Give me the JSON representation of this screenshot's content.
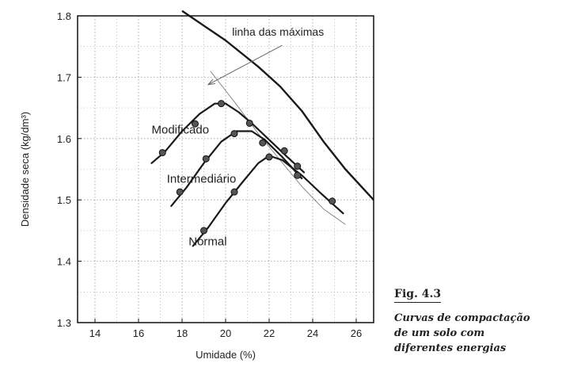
{
  "chart_data": {
    "type": "line",
    "xlabel": "Umidade (%)",
    "ylabel": "Densidade seca (kg/dm³)",
    "xlim": [
      13.2,
      26.8
    ],
    "ylim": [
      1.3,
      1.8
    ],
    "x_ticks": [
      "14",
      "16",
      "18",
      "20",
      "22",
      "24",
      "26"
    ],
    "y_ticks": [
      "1.3",
      "1.4",
      "1.5",
      "1.6",
      "1.7",
      "1.8"
    ],
    "grid": true,
    "series": [
      {
        "name": "Modificado",
        "curve": [
          [
            16.6,
            1.56
          ],
          [
            17.2,
            1.578
          ],
          [
            18.0,
            1.612
          ],
          [
            18.8,
            1.64
          ],
          [
            19.5,
            1.657
          ],
          [
            20.0,
            1.657
          ],
          [
            20.6,
            1.643
          ],
          [
            21.2,
            1.625
          ],
          [
            22.0,
            1.598
          ],
          [
            22.8,
            1.571
          ],
          [
            23.6,
            1.545
          ]
        ],
        "points": [
          [
            17.1,
            1.577
          ],
          [
            18.6,
            1.624
          ],
          [
            19.8,
            1.657
          ],
          [
            21.1,
            1.625
          ],
          [
            22.7,
            1.58
          ],
          [
            23.3,
            1.555
          ]
        ]
      },
      {
        "name": "Intermediário",
        "curve": [
          [
            17.5,
            1.49
          ],
          [
            18.2,
            1.52
          ],
          [
            19.0,
            1.56
          ],
          [
            19.8,
            1.595
          ],
          [
            20.5,
            1.612
          ],
          [
            21.2,
            1.612
          ],
          [
            21.8,
            1.598
          ],
          [
            22.6,
            1.57
          ],
          [
            23.5,
            1.535
          ]
        ],
        "points": [
          [
            17.9,
            1.513
          ],
          [
            19.1,
            1.567
          ],
          [
            20.4,
            1.608
          ],
          [
            21.7,
            1.593
          ],
          [
            23.3,
            1.54
          ]
        ]
      },
      {
        "name": "Normal",
        "curve": [
          [
            18.5,
            1.425
          ],
          [
            19.2,
            1.455
          ],
          [
            20.0,
            1.495
          ],
          [
            20.8,
            1.53
          ],
          [
            21.5,
            1.56
          ],
          [
            22.0,
            1.572
          ],
          [
            22.6,
            1.565
          ],
          [
            23.5,
            1.54
          ],
          [
            24.4,
            1.51
          ],
          [
            25.4,
            1.478
          ]
        ],
        "points": [
          [
            19.0,
            1.45
          ],
          [
            20.4,
            1.513
          ],
          [
            22.0,
            1.57
          ],
          [
            24.9,
            1.498
          ]
        ]
      }
    ],
    "max_line": {
      "name": "linha das máximas",
      "curve": [
        [
          18.0,
          1.808
        ],
        [
          20.0,
          1.76
        ],
        [
          21.5,
          1.717
        ],
        [
          22.5,
          1.685
        ],
        [
          23.5,
          1.645
        ],
        [
          24.5,
          1.595
        ],
        [
          25.5,
          1.55
        ],
        [
          26.8,
          1.5
        ]
      ]
    },
    "optimum_line": {
      "curve": [
        [
          19.3,
          1.71
        ],
        [
          20.4,
          1.66
        ],
        [
          21.5,
          1.608
        ],
        [
          22.5,
          1.565
        ],
        [
          23.5,
          1.522
        ],
        [
          24.5,
          1.485
        ],
        [
          25.5,
          1.46
        ]
      ]
    },
    "annotation": {
      "text": "linha das máximas",
      "text_at": [
        20.3,
        1.768
      ],
      "arrow_from": [
        22.6,
        1.752
      ],
      "arrow_to": [
        19.2,
        1.688
      ]
    },
    "curve_labels": [
      {
        "text": "Modificado",
        "at": [
          16.6,
          1.608
        ]
      },
      {
        "text": "Intermediário",
        "at": [
          17.3,
          1.528
        ]
      },
      {
        "text": "Normal",
        "at": [
          18.3,
          1.426
        ]
      }
    ],
    "colors": {
      "curve": "#1a1a1a",
      "point": "#555555",
      "grid": "#9a9a9a",
      "thin_line": "#888888"
    }
  },
  "caption": {
    "fig_label": "Fig. 4.3",
    "lines": [
      "Curvas de compactação",
      "de um solo com",
      "diferentes energias"
    ]
  }
}
